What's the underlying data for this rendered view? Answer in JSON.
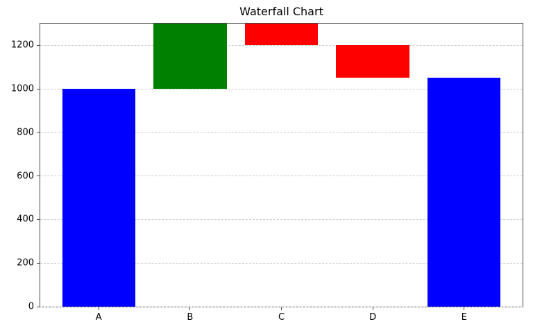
{
  "chart_data": {
    "type": "bar",
    "subtype": "waterfall",
    "title": "Waterfall Chart",
    "categories": [
      "A",
      "B",
      "C",
      "D",
      "E"
    ],
    "bars": [
      {
        "label": "A",
        "start": 0,
        "end": 1000,
        "change": 1000,
        "role": "total",
        "color": "#0000ff"
      },
      {
        "label": "B",
        "start": 1000,
        "end": 1300,
        "change": 300,
        "role": "increase",
        "color": "#008000"
      },
      {
        "label": "C",
        "start": 1300,
        "end": 1200,
        "change": -100,
        "role": "decrease",
        "color": "#ff0000"
      },
      {
        "label": "D",
        "start": 1200,
        "end": 1050,
        "change": -150,
        "role": "decrease",
        "color": "#ff0000"
      },
      {
        "label": "E",
        "start": 0,
        "end": 1050,
        "change": 1050,
        "role": "total",
        "color": "#0000ff"
      }
    ],
    "yticks": [
      0,
      200,
      400,
      600,
      800,
      1000,
      1200
    ],
    "ytick_labels": [
      "0",
      "200",
      "400",
      "600",
      "800",
      "1000",
      "1200"
    ],
    "ylim": [
      0,
      1300
    ],
    "xlim": [
      -0.64,
      4.64
    ],
    "bar_width": 0.8,
    "xlabel": "",
    "ylabel": "",
    "legend": "none",
    "grid": {
      "axis": "y",
      "linestyle": "dashed",
      "color": "#c9c9c9"
    },
    "spine_color": "#444444",
    "background_color": "#ffffff"
  }
}
